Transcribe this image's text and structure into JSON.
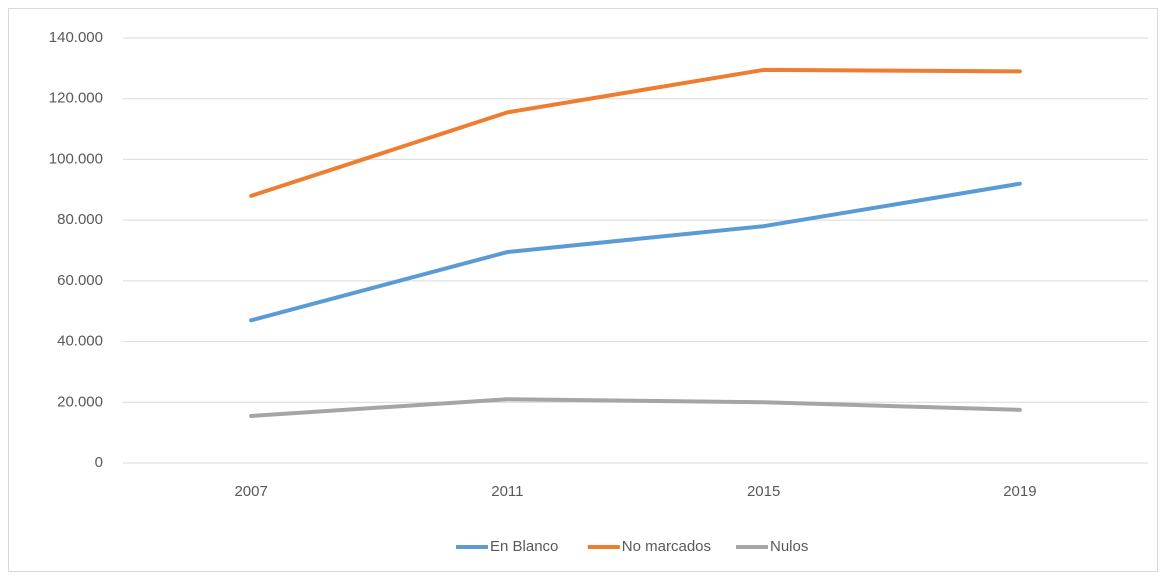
{
  "chart_data": {
    "type": "line",
    "categories": [
      "2007",
      "2011",
      "2015",
      "2019"
    ],
    "series": [
      {
        "name": "En Blanco",
        "color": "#5b9bd5",
        "values": [
          47000,
          69500,
          78000,
          92000
        ]
      },
      {
        "name": "No marcados",
        "color": "#ed7d31",
        "values": [
          88000,
          115500,
          129500,
          129000
        ]
      },
      {
        "name": "Nulos",
        "color": "#a5a5a5",
        "values": [
          15500,
          21000,
          20000,
          17500
        ]
      }
    ],
    "ylim": [
      0,
      140000
    ],
    "yticks": [
      0,
      {
        "value": 20000,
        "label": "20.000"
      },
      {
        "value": 40000,
        "label": "40.000"
      },
      {
        "value": 60000,
        "label": "60.000"
      },
      {
        "value": 80000,
        "label": "80.000"
      },
      {
        "value": 100000,
        "label": "100.000"
      },
      {
        "value": 120000,
        "label": "120.000"
      },
      {
        "value": 140000,
        "label": "140.000"
      }
    ],
    "grid": true,
    "legend": "bottom"
  }
}
